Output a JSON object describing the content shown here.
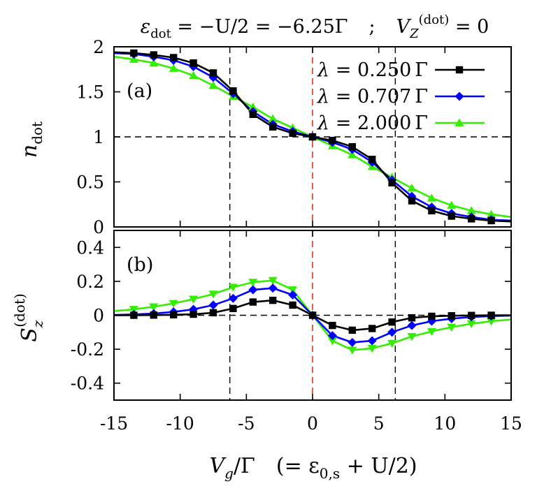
{
  "title": {
    "line": "ε_dot = −U/2 = −6.25Γ  ;  V_Z^(dot) = 0",
    "parts": {
      "eps": "ε",
      "eps_sub": "dot",
      "eq1": " = −U/2 = −6.25Γ",
      "sep": ";",
      "vz": "V",
      "vz_sub": "Z",
      "vz_sup": "(dot)",
      "eq2": " = 0"
    }
  },
  "xlabel": {
    "text": "V_g/Γ   (= ε_{0,s} + U/2)",
    "parts": {
      "v": "V",
      "g": "g",
      "slash": "/Γ",
      "paren_open": "(= ε",
      "sub": "0,s",
      "rest": " + U/2)"
    }
  },
  "colors": {
    "series": [
      "#000000",
      "#0000ff",
      "#33ee00"
    ],
    "vline_red": "#e8321e",
    "guide": "#000000"
  },
  "chart_data": [
    {
      "type": "line",
      "panel_label": "(a)",
      "ylabel": "n_dot",
      "ylabel_parts": {
        "main": "n",
        "sub": "dot"
      },
      "xlim": [
        -15,
        15
      ],
      "ylim": [
        0,
        2
      ],
      "xticks": [
        "-15",
        "-10",
        "-5",
        "0",
        "5",
        "10",
        "15"
      ],
      "xtick_values": [
        -15,
        -10,
        -5,
        0,
        5,
        10,
        15
      ],
      "yticks": [
        "0",
        "0.5",
        "1",
        "1.5",
        "2"
      ],
      "ytick_values": [
        0,
        0.5,
        1,
        1.5,
        2
      ],
      "hlines": [
        1
      ],
      "vlines_dashed_black": [
        -6.25,
        6.25
      ],
      "vline_dashed_red": 0,
      "legend_position": "top-right",
      "x": [
        -15,
        -13.5,
        -12,
        -10.5,
        -9,
        -7.5,
        -6,
        -4.5,
        -3,
        -1.5,
        0,
        1.5,
        3,
        4.5,
        6,
        7.5,
        9,
        10.5,
        12,
        13.5,
        15
      ],
      "series": [
        {
          "name": "λ = 0.250 Γ",
          "marker": "square",
          "values": [
            1.94,
            1.93,
            1.91,
            1.88,
            1.82,
            1.71,
            1.51,
            1.25,
            1.11,
            1.04,
            1.0,
            0.96,
            0.89,
            0.75,
            0.49,
            0.29,
            0.18,
            0.12,
            0.09,
            0.07,
            0.06
          ]
        },
        {
          "name": "λ = 0.707 Γ",
          "marker": "diamond",
          "values": [
            1.93,
            1.92,
            1.89,
            1.85,
            1.78,
            1.66,
            1.48,
            1.28,
            1.14,
            1.06,
            1.0,
            0.94,
            0.86,
            0.72,
            0.52,
            0.34,
            0.22,
            0.15,
            0.11,
            0.08,
            0.07
          ]
        },
        {
          "name": "λ = 2.000 Γ",
          "marker": "triangle-up",
          "values": [
            1.89,
            1.86,
            1.82,
            1.76,
            1.68,
            1.57,
            1.45,
            1.33,
            1.2,
            1.1,
            1.0,
            0.9,
            0.8,
            0.67,
            0.55,
            0.43,
            0.32,
            0.24,
            0.18,
            0.14,
            0.11
          ]
        }
      ],
      "legend": [
        {
          "lambda": "λ",
          "eq": " = ",
          "value": "0.250",
          "unit": "Γ"
        },
        {
          "lambda": "λ",
          "eq": " = ",
          "value": "0.707",
          "unit": "Γ"
        },
        {
          "lambda": "λ",
          "eq": " = ",
          "value": "2.000",
          "unit": "Γ"
        }
      ]
    },
    {
      "type": "line",
      "panel_label": "(b)",
      "ylabel": "S_z^(dot)",
      "ylabel_parts": {
        "main": "S",
        "sub": "z",
        "sup": "(dot)"
      },
      "xlim": [
        -15,
        15
      ],
      "ylim": [
        -0.5,
        0.5
      ],
      "xticks": [
        "-15",
        "-10",
        "-5",
        "0",
        "5",
        "10",
        "15"
      ],
      "xtick_values": [
        -15,
        -10,
        -5,
        0,
        5,
        10,
        15
      ],
      "yticks": [
        "-0.4",
        "-0.2",
        "0",
        "0.2",
        "0.4"
      ],
      "ytick_values": [
        -0.4,
        -0.2,
        0,
        0.2,
        0.4
      ],
      "hlines": [
        0
      ],
      "vlines_dashed_black": [
        -6.25,
        6.25
      ],
      "vline_dashed_red": 0,
      "x": [
        -15,
        -13.5,
        -12,
        -10.5,
        -9,
        -7.5,
        -6,
        -4.5,
        -3,
        -1.5,
        0,
        1.5,
        3,
        4.5,
        6,
        7.5,
        9,
        10.5,
        12,
        13.5,
        15
      ],
      "series": [
        {
          "name": "λ = 0.250 Γ",
          "marker": "square",
          "values": [
            0.0,
            0.0,
            0.001,
            0.003,
            0.006,
            0.015,
            0.04,
            0.078,
            0.088,
            0.06,
            0.0,
            -0.06,
            -0.088,
            -0.078,
            -0.04,
            -0.015,
            -0.006,
            -0.003,
            -0.001,
            0.0,
            0.0
          ]
        },
        {
          "name": "λ = 0.707 Γ",
          "marker": "diamond",
          "values": [
            0.002,
            0.005,
            0.01,
            0.02,
            0.035,
            0.06,
            0.1,
            0.15,
            0.16,
            0.12,
            0.0,
            -0.12,
            -0.16,
            -0.15,
            -0.1,
            -0.06,
            -0.035,
            -0.02,
            -0.01,
            -0.005,
            -0.002
          ]
        },
        {
          "name": "λ = 2.000 Γ",
          "marker": "triangle-down",
          "values": [
            0.025,
            0.035,
            0.05,
            0.07,
            0.095,
            0.125,
            0.165,
            0.195,
            0.205,
            0.15,
            0.0,
            -0.15,
            -0.205,
            -0.195,
            -0.165,
            -0.125,
            -0.095,
            -0.07,
            -0.05,
            -0.035,
            -0.025
          ]
        }
      ]
    }
  ]
}
